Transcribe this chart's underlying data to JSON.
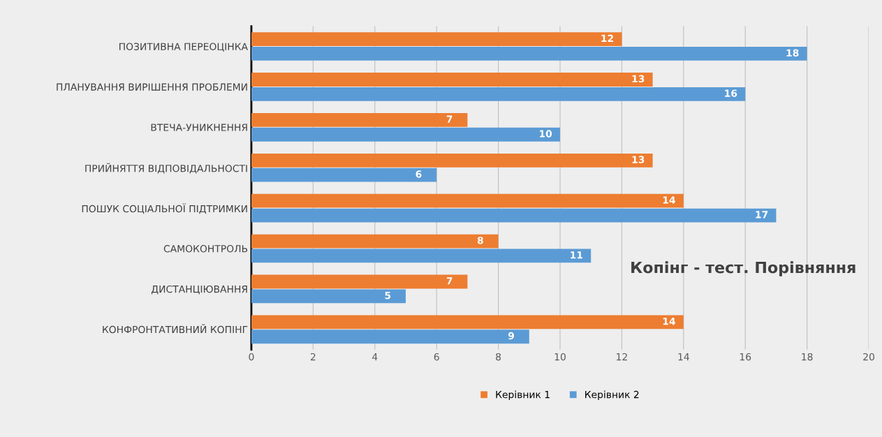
{
  "chart_data": {
    "type": "bar",
    "orientation": "horizontal",
    "title": "Копінг - тест. Порівняння",
    "categories": [
      "ПОЗИТИВНА ПЕРЕОЦІНКА",
      "ПЛАНУВАННЯ ВИРІШЕННЯ ПРОБЛЕМИ",
      "ВТЕЧА-УНИКНЕННЯ",
      "ПРИЙНЯТТЯ ВІДПОВІДАЛЬНОСТІ",
      "ПОШУК СОЦІАЛЬНОЇ ПІДТРИМКИ",
      "САМОКОНТРОЛЬ",
      "ДИСТАНЦІЮВАННЯ",
      "КОНФРОНТАТИВНИЙ КОПІНГ"
    ],
    "series": [
      {
        "name": "Керівник 1",
        "color": "#ed7d31",
        "values": [
          12,
          13,
          7,
          13,
          14,
          8,
          7,
          14
        ]
      },
      {
        "name": "Керівник 2",
        "color": "#5b9bd5",
        "values": [
          18,
          16,
          10,
          6,
          17,
          11,
          5,
          9
        ]
      }
    ],
    "xlim": [
      0,
      20
    ],
    "xticks": [
      0,
      2,
      4,
      6,
      8,
      10,
      12,
      14,
      16,
      18,
      20
    ],
    "grid": "x",
    "legend": "bottom",
    "data_labels": true
  }
}
